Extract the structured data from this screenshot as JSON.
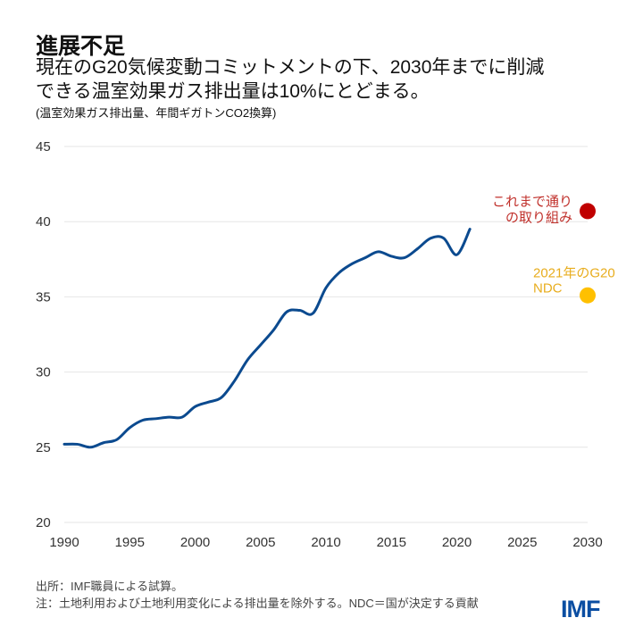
{
  "header": {
    "title": "進展不足",
    "subtitle_line1": "現在のG20気候変動コミットメントの下、2030年までに削減",
    "subtitle_line2": "できる温室効果ガス排出量は10%にとどまる。",
    "unit": "(温室効果ガス排出量、年間ギガトンCO2換算)"
  },
  "chart_data": {
    "type": "line",
    "title": "",
    "xlabel": "",
    "ylabel": "",
    "xlim": [
      1990,
      2030
    ],
    "ylim": [
      20,
      45
    ],
    "grid": true,
    "x_ticks": [
      "1990",
      "1995",
      "2000",
      "2005",
      "2010",
      "2015",
      "2020",
      "2025",
      "2030"
    ],
    "y_ticks": [
      "20",
      "25",
      "30",
      "35",
      "40",
      "45"
    ],
    "series": [
      {
        "color": "#0b4a8f",
        "x": [
          1990,
          1991,
          1992,
          1993,
          1994,
          1995,
          1996,
          1997,
          1998,
          1999,
          2000,
          2001,
          2002,
          2003,
          2004,
          2005,
          2006,
          2007,
          2008,
          2009,
          2010,
          2011,
          2012,
          2013,
          2014,
          2015,
          2016,
          2017,
          2018,
          2019,
          2020,
          2021
        ],
        "y": [
          25.2,
          25.2,
          25.0,
          25.3,
          25.5,
          26.3,
          26.8,
          26.9,
          27.0,
          27.0,
          27.7,
          28.0,
          28.3,
          29.4,
          30.8,
          31.8,
          32.8,
          34.0,
          34.1,
          33.9,
          35.6,
          36.6,
          37.2,
          37.6,
          38.0,
          37.7,
          37.6,
          38.2,
          38.9,
          38.9,
          37.8,
          39.5
        ]
      }
    ],
    "points": [
      {
        "label_line1": "これまで通り",
        "label_line2": "の取り組み",
        "x": 2030,
        "y": 40.7,
        "color": "#c00000",
        "label_color": "#c0302b"
      },
      {
        "label_line1": "2021年のG20",
        "label_line2": "NDC",
        "x": 2030,
        "y": 35.1,
        "color": "#ffc000",
        "label_color": "#e8ad1e"
      }
    ]
  },
  "footer": {
    "source": "出所：IMF職員による試算。",
    "note": "注：土地利用および土地利用変化による排出量を除外する。NDC＝国が決定する貢献",
    "logo": "IMF"
  }
}
